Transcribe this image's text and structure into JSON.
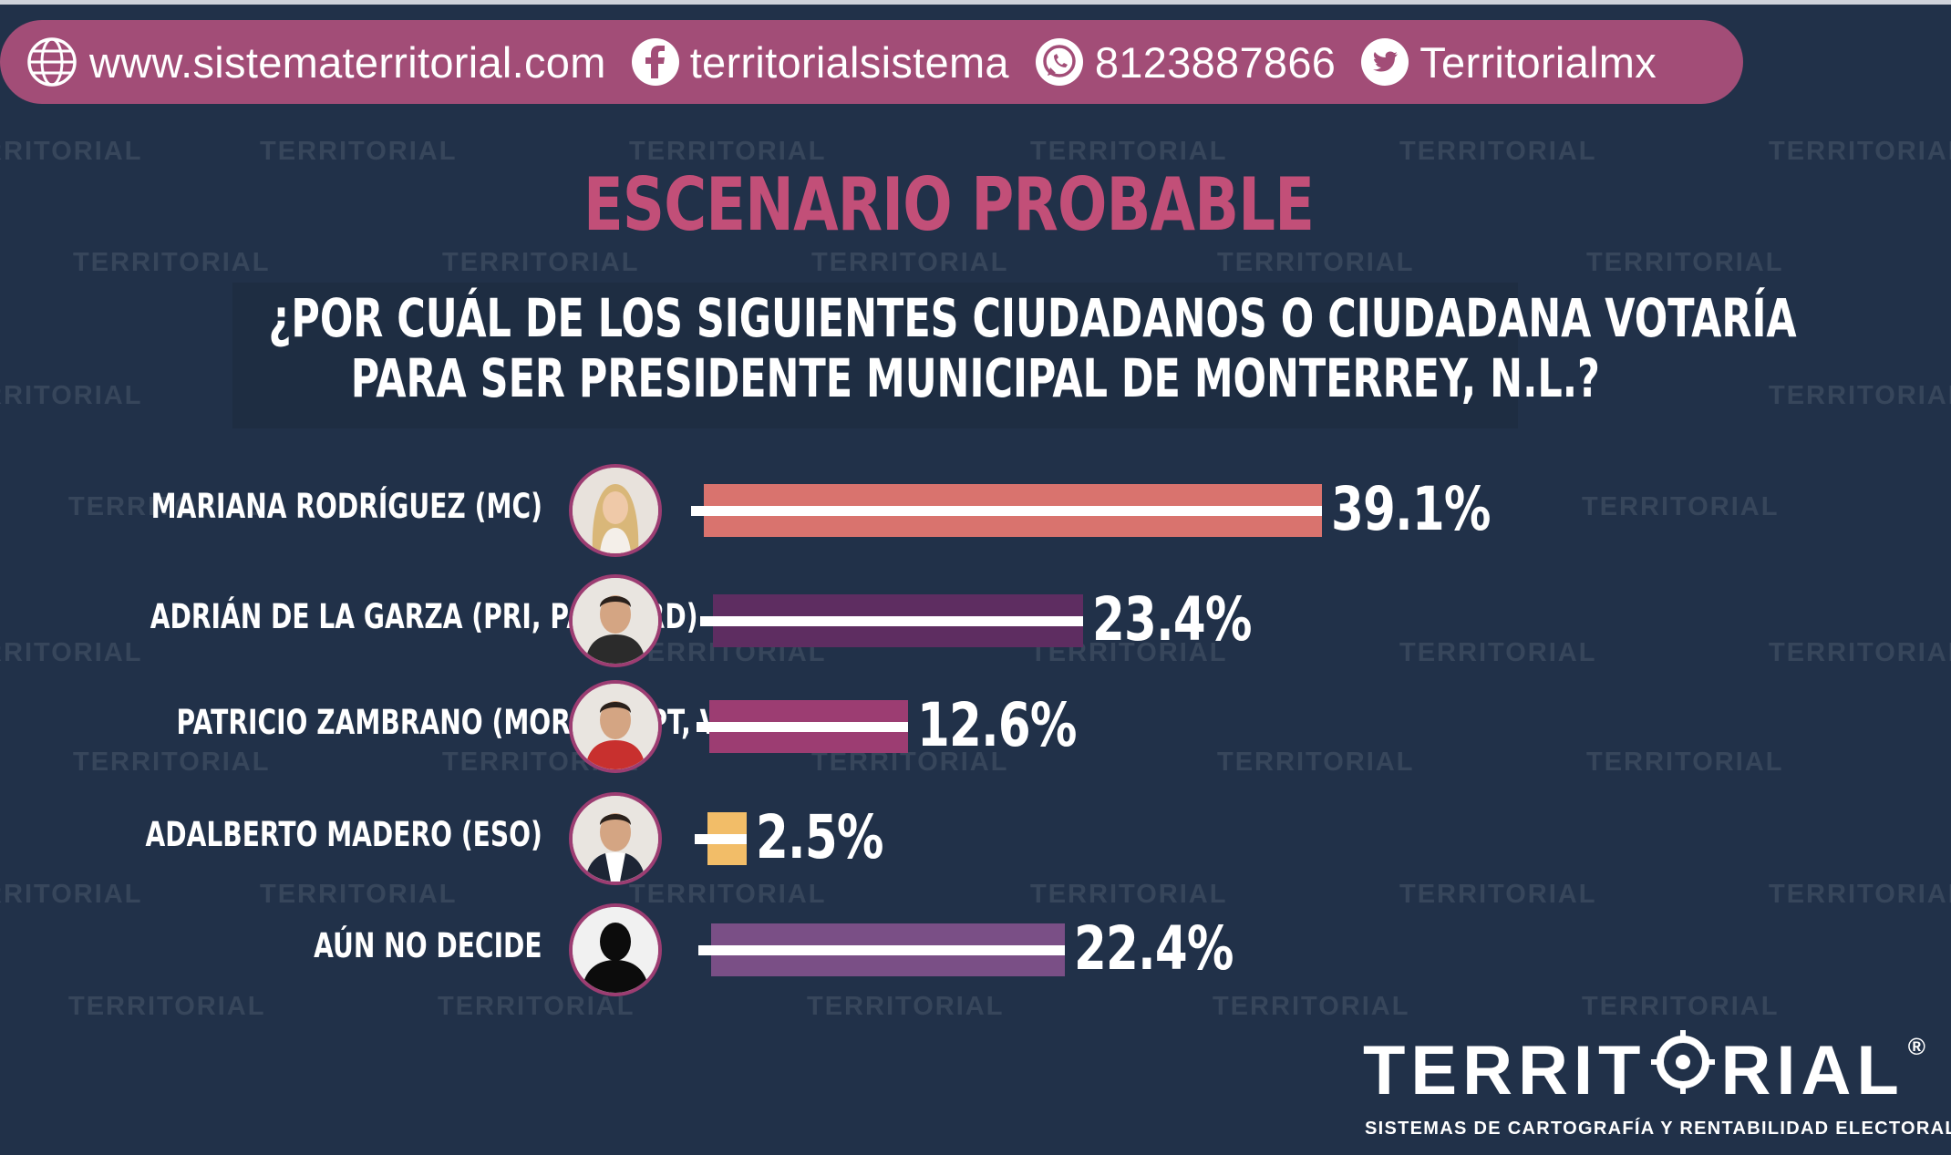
{
  "contact": {
    "website": "www.sistematerritorial.com",
    "facebook": "territorialsistema",
    "whatsapp": "8123887866",
    "twitter": "Territorialmx"
  },
  "watermark": {
    "text": "TERRITORIAL",
    "subtext": "SISTEMAS DE CARTOGRAFÍA Y RENTABILIDAD ELECTORAL"
  },
  "scenario_title": "ESCENARIO PROBABLE",
  "question": {
    "line1": "¿POR CUÁL DE LOS SIGUIENTES CIUDADANOS  O CIUDADANA  VOTARÍA",
    "line2": "PARA SER PRESIDENTE MUNICIPAL DE MONTERREY, N.L.?"
  },
  "chart_data": {
    "type": "bar",
    "orientation": "horizontal",
    "title": "ESCENARIO PROBABLE",
    "categories": [
      "MARIANA RODRÍGUEZ (MC)",
      "ADRIÁN DE LA GARZA (PRI, PAN, PRD)",
      "PATRICIO ZAMBRANO (MORENA, PT, VERDE)",
      "ADALBERTO MADERO (ESO)",
      "AÚN NO DECIDE"
    ],
    "values": [
      39.1,
      23.4,
      12.6,
      2.5,
      22.4
    ],
    "value_labels": [
      "39.1%",
      "23.4%",
      "12.6%",
      "2.5%",
      "22.4%"
    ],
    "unit": "%",
    "colors": [
      "#d9736e",
      "#5e2d61",
      "#9c3d72",
      "#f2bd68",
      "#7a4f86"
    ]
  },
  "colors": {
    "background": "#213149",
    "accent": "#a24d77",
    "title": "#c24f78"
  },
  "logo": {
    "name": "TERRITORIAL",
    "registered": "®",
    "tagline": "SISTEMAS DE CARTOGRAFÍA Y RENTABILIDAD ELECTORAL"
  }
}
